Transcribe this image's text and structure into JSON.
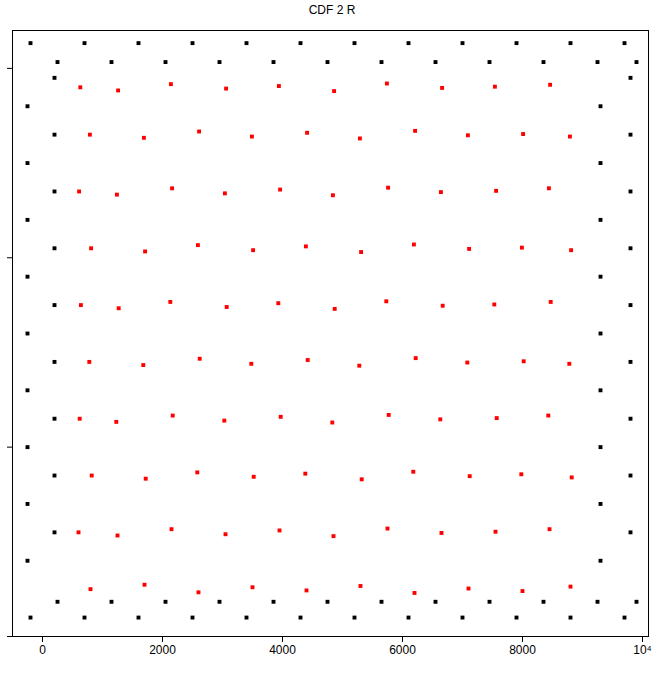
{
  "chart_data": {
    "type": "scatter",
    "title": "CDF 2 R",
    "xlim": [
      -500,
      10100
    ],
    "ylim": [
      0,
      9600
    ],
    "xticks": [
      0,
      2000,
      4000,
      6000,
      8000,
      {
        "value": 10000,
        "label": "10⁴"
      }
    ],
    "yticks": [
      0,
      3000,
      6000,
      9000
    ],
    "tick_labels": "x",
    "grid": false,
    "series": [
      {
        "color": "#000000",
        "marker": "square",
        "x": [
          -200,
          700,
          1600,
          2500,
          3400,
          4300,
          5200,
          6100,
          7000,
          7900,
          8800,
          9700,
          250,
          1150,
          2050,
          2950,
          3850,
          4750,
          5650,
          6550,
          7450,
          8350,
          9250,
          9900,
          -200,
          700,
          1600,
          2500,
          3400,
          4300,
          5200,
          6100,
          7000,
          7900,
          8800,
          9700,
          250,
          1150,
          2050,
          2950,
          3850,
          4750,
          5650,
          6550,
          7450,
          8350,
          9250,
          9900,
          -250,
          -250,
          -250,
          -250,
          -250,
          -250,
          -250,
          -250,
          -250,
          200,
          200,
          200,
          200,
          200,
          200,
          200,
          200,
          200,
          9300,
          9300,
          9300,
          9300,
          9300,
          9300,
          9300,
          9300,
          9300,
          9800,
          9800,
          9800,
          9800,
          9800,
          9800,
          9800,
          9800,
          9800
        ],
        "values": [
          300,
          300,
          300,
          300,
          300,
          300,
          300,
          300,
          300,
          300,
          300,
          300,
          550,
          550,
          550,
          550,
          550,
          550,
          550,
          550,
          550,
          550,
          550,
          550,
          9400,
          9400,
          9400,
          9400,
          9400,
          9400,
          9400,
          9400,
          9400,
          9400,
          9400,
          9400,
          9100,
          9100,
          9100,
          9100,
          9100,
          9100,
          9100,
          9100,
          9100,
          9100,
          9100,
          9100,
          1200,
          2100,
          3000,
          3900,
          4800,
          5700,
          6600,
          7500,
          8400,
          1650,
          2550,
          3450,
          4350,
          5250,
          6150,
          7050,
          7950,
          8850,
          1200,
          2100,
          3000,
          3900,
          4800,
          5700,
          6600,
          7500,
          8400,
          1650,
          2550,
          3450,
          4350,
          5250,
          6150,
          7050,
          7950,
          8850
        ]
      },
      {
        "color": "#ff0000",
        "marker": "square",
        "x": [
          800,
          1700,
          2600,
          3500,
          4400,
          5300,
          6200,
          7100,
          8000,
          8800,
          600,
          1250,
          2150,
          3050,
          3950,
          4850,
          5750,
          6650,
          7550,
          8450,
          820,
          1720,
          2580,
          3520,
          4380,
          5320,
          6180,
          7120,
          7980,
          8820,
          620,
          1230,
          2170,
          3030,
          3970,
          4830,
          5770,
          6630,
          7570,
          8430,
          780,
          1680,
          2620,
          3480,
          4420,
          5280,
          6220,
          7080,
          8020,
          8780,
          640,
          1270,
          2130,
          3070,
          3930,
          4870,
          5730,
          6670,
          7530,
          8470,
          810,
          1710,
          2590,
          3510,
          4390,
          5310,
          6190,
          7110,
          7990,
          8810,
          610,
          1240,
          2160,
          3040,
          3960,
          4840,
          5760,
          6640,
          7560,
          8440,
          790,
          1690,
          2610,
          3490,
          4410,
          5290,
          6210,
          7090,
          8010,
          8790,
          630,
          1260,
          2140,
          3060,
          3940,
          4860,
          5740,
          6660,
          7540,
          8460
        ],
        "values": [
          750,
          820,
          700,
          780,
          730,
          800,
          690,
          760,
          720,
          790,
          1650,
          1600,
          1700,
          1620,
          1680,
          1590,
          1710,
          1640,
          1660,
          1700,
          2550,
          2500,
          2600,
          2530,
          2580,
          2490,
          2610,
          2540,
          2570,
          2520,
          3450,
          3400,
          3500,
          3420,
          3480,
          3390,
          3510,
          3440,
          3460,
          3500,
          4350,
          4300,
          4400,
          4320,
          4380,
          4290,
          4410,
          4340,
          4360,
          4320,
          5250,
          5200,
          5300,
          5220,
          5280,
          5190,
          5310,
          5240,
          5260,
          5300,
          6150,
          6100,
          6200,
          6120,
          6180,
          6090,
          6210,
          6140,
          6160,
          6120,
          7050,
          7000,
          7100,
          7020,
          7080,
          6990,
          7110,
          7040,
          7060,
          7100,
          7950,
          7900,
          8000,
          7920,
          7980,
          7890,
          8010,
          7940,
          7960,
          7920,
          8700,
          8650,
          8750,
          8680,
          8720,
          8640,
          8760,
          8690,
          8710,
          8740
        ]
      }
    ]
  }
}
